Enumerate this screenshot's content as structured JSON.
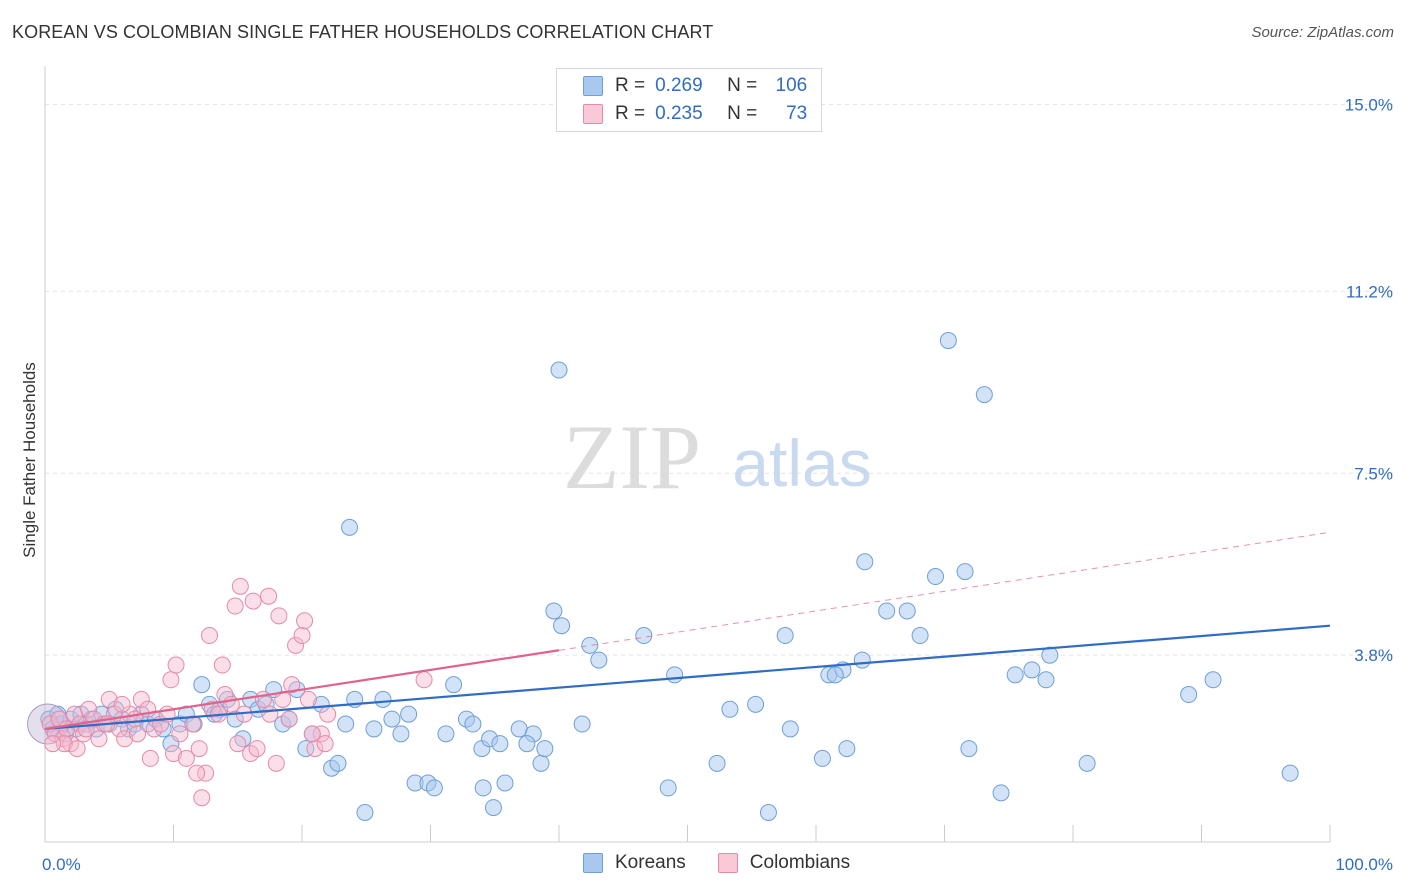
{
  "header": {
    "title": "KOREAN VS COLOMBIAN SINGLE FATHER HOUSEHOLDS CORRELATION CHART",
    "source": "Source: ZipAtlas.com"
  },
  "watermark": {
    "zip": "ZIP",
    "atlas": "atlas"
  },
  "legend": {
    "r_label": "R =",
    "n_label": "N =",
    "series": [
      {
        "r": "0.269",
        "n": "106"
      },
      {
        "r": "0.235",
        "n": "73"
      }
    ]
  },
  "chart_data": {
    "type": "scatter",
    "title": "KOREAN VS COLOMBIAN SINGLE FATHER HOUSEHOLDS CORRELATION CHART",
    "xlabel": "",
    "ylabel": "Single Father Households",
    "xlim": [
      0,
      100
    ],
    "ylim": [
      0,
      15.5
    ],
    "x_tick_labels": [
      "0.0%",
      "100.0%"
    ],
    "y_ticks": [
      {
        "value": 3.8,
        "label": "3.8%"
      },
      {
        "value": 7.5,
        "label": "7.5%"
      },
      {
        "value": 11.2,
        "label": "11.2%"
      },
      {
        "value": 15.0,
        "label": "15.0%"
      }
    ],
    "colors": {
      "koreans_fill": "#a8c8f0",
      "koreans_stroke": "#6e9fd8",
      "koreans_line": "#2f6cc6",
      "colombians_fill": "#f6b8cc",
      "colombians_stroke": "#e58aa8",
      "colombians_line": "#e0638c",
      "axis_label": "#2f6cc6",
      "grid": "#e3e3e3"
    },
    "series": [
      {
        "name": "Koreans",
        "trend": {
          "x": [
            0,
            100
          ],
          "y": [
            2.3,
            4.4
          ]
        },
        "points": [
          [
            0.3,
            2.5
          ],
          [
            0.6,
            2.3
          ],
          [
            1.0,
            2.6
          ],
          [
            1.3,
            2.4
          ],
          [
            1.6,
            2.2
          ],
          [
            2.0,
            2.5
          ],
          [
            2.4,
            2.3
          ],
          [
            2.8,
            2.6
          ],
          [
            3.2,
            2.4
          ],
          [
            3.6,
            2.5
          ],
          [
            4.0,
            2.3
          ],
          [
            4.4,
            2.6
          ],
          [
            5.0,
            2.4
          ],
          [
            5.5,
            2.7
          ],
          [
            6.0,
            2.5
          ],
          [
            6.5,
            2.3
          ],
          [
            7.0,
            2.4
          ],
          [
            7.5,
            2.6
          ],
          [
            8.0,
            2.4
          ],
          [
            8.6,
            2.5
          ],
          [
            9.2,
            2.3
          ],
          [
            9.8,
            2.0
          ],
          [
            10.5,
            2.4
          ],
          [
            11.0,
            2.6
          ],
          [
            11.6,
            2.4
          ],
          [
            12.2,
            3.2
          ],
          [
            12.8,
            2.8
          ],
          [
            13.2,
            2.6
          ],
          [
            13.6,
            2.7
          ],
          [
            14.2,
            2.9
          ],
          [
            14.8,
            2.5
          ],
          [
            15.4,
            2.1
          ],
          [
            16.0,
            2.9
          ],
          [
            16.6,
            2.7
          ],
          [
            17.2,
            2.8
          ],
          [
            17.8,
            3.1
          ],
          [
            18.5,
            2.4
          ],
          [
            19.0,
            2.5
          ],
          [
            19.6,
            3.1
          ],
          [
            20.3,
            1.9
          ],
          [
            20.8,
            2.2
          ],
          [
            21.5,
            2.8
          ],
          [
            22.3,
            1.5
          ],
          [
            22.8,
            1.6
          ],
          [
            23.4,
            2.4
          ],
          [
            24.1,
            2.9
          ],
          [
            24.9,
            0.6
          ],
          [
            25.6,
            2.3
          ],
          [
            26.3,
            2.9
          ],
          [
            27.0,
            2.5
          ],
          [
            27.7,
            2.2
          ],
          [
            28.3,
            2.6
          ],
          [
            28.8,
            1.2
          ],
          [
            29.8,
            1.2
          ],
          [
            30.3,
            1.1
          ],
          [
            31.2,
            2.2
          ],
          [
            31.8,
            3.2
          ],
          [
            32.8,
            2.5
          ],
          [
            33.3,
            2.4
          ],
          [
            34.0,
            1.9
          ],
          [
            34.6,
            2.1
          ],
          [
            34.9,
            0.7
          ],
          [
            35.4,
            2.0
          ],
          [
            35.8,
            1.2
          ],
          [
            36.9,
            2.3
          ],
          [
            38.0,
            2.2
          ],
          [
            38.6,
            1.6
          ],
          [
            38.9,
            1.9
          ],
          [
            39.6,
            4.7
          ],
          [
            40.2,
            4.4
          ],
          [
            34.1,
            1.1
          ],
          [
            37.5,
            2.0
          ],
          [
            41.8,
            2.4
          ],
          [
            42.4,
            4.0
          ],
          [
            43.1,
            3.7
          ],
          [
            46.6,
            4.2
          ],
          [
            49.0,
            3.4
          ],
          [
            53.3,
            2.7
          ],
          [
            55.3,
            2.8
          ],
          [
            56.3,
            0.6
          ],
          [
            57.6,
            4.2
          ],
          [
            60.5,
            1.7
          ],
          [
            61.0,
            3.4
          ],
          [
            62.1,
            3.5
          ],
          [
            62.4,
            1.9
          ],
          [
            63.8,
            5.7
          ],
          [
            63.6,
            3.7
          ],
          [
            65.5,
            4.7
          ],
          [
            67.1,
            4.7
          ],
          [
            68.1,
            4.2
          ],
          [
            69.3,
            5.4
          ],
          [
            70.3,
            10.2
          ],
          [
            71.6,
            5.5
          ],
          [
            71.9,
            1.9
          ],
          [
            73.1,
            9.1
          ],
          [
            74.4,
            1.0
          ],
          [
            75.5,
            3.4
          ],
          [
            76.8,
            3.5
          ],
          [
            77.9,
            3.3
          ],
          [
            78.2,
            3.8
          ],
          [
            81.1,
            1.6
          ],
          [
            89.0,
            3.0
          ],
          [
            90.9,
            3.3
          ],
          [
            96.9,
            1.4
          ],
          [
            48.5,
            1.1
          ],
          [
            52.3,
            1.6
          ],
          [
            23.7,
            6.4
          ],
          [
            40.0,
            9.6
          ],
          [
            61.5,
            3.4
          ],
          [
            58.0,
            2.3
          ]
        ]
      },
      {
        "name": "Colombians",
        "trend": {
          "x": [
            0,
            40
          ],
          "y": [
            2.3,
            3.9
          ]
        },
        "trend_dashed": {
          "x": [
            40,
            100
          ],
          "y": [
            3.9,
            6.3
          ]
        },
        "points": [
          [
            0.4,
            2.4
          ],
          [
            0.8,
            2.2
          ],
          [
            1.1,
            2.5
          ],
          [
            1.4,
            2.1
          ],
          [
            1.7,
            2.3
          ],
          [
            2.0,
            2.0
          ],
          [
            2.3,
            2.6
          ],
          [
            2.7,
            2.4
          ],
          [
            3.0,
            2.2
          ],
          [
            3.4,
            2.7
          ],
          [
            3.8,
            2.5
          ],
          [
            4.2,
            2.1
          ],
          [
            4.6,
            2.4
          ],
          [
            5.0,
            2.9
          ],
          [
            5.4,
            2.6
          ],
          [
            5.8,
            2.3
          ],
          [
            6.2,
            2.1
          ],
          [
            6.6,
            2.6
          ],
          [
            7.0,
            2.5
          ],
          [
            7.5,
            2.9
          ],
          [
            8.0,
            2.7
          ],
          [
            8.5,
            2.3
          ],
          [
            9.0,
            2.4
          ],
          [
            9.5,
            2.6
          ],
          [
            10.0,
            1.8
          ],
          [
            10.5,
            2.2
          ],
          [
            11.0,
            1.7
          ],
          [
            11.5,
            2.4
          ],
          [
            12.0,
            1.9
          ],
          [
            12.5,
            1.4
          ],
          [
            13.0,
            2.7
          ],
          [
            13.5,
            2.6
          ],
          [
            14.0,
            3.0
          ],
          [
            14.5,
            2.8
          ],
          [
            15.0,
            2.0
          ],
          [
            15.5,
            2.6
          ],
          [
            16.0,
            1.8
          ],
          [
            16.5,
            1.9
          ],
          [
            17.0,
            2.9
          ],
          [
            17.5,
            2.6
          ],
          [
            18.0,
            1.6
          ],
          [
            18.5,
            2.9
          ],
          [
            19.0,
            2.5
          ],
          [
            19.5,
            4.0
          ],
          [
            20.0,
            4.2
          ],
          [
            20.5,
            2.9
          ],
          [
            21.0,
            1.9
          ],
          [
            21.5,
            2.2
          ],
          [
            22.0,
            2.6
          ],
          [
            1.5,
            2.0
          ],
          [
            2.5,
            1.9
          ],
          [
            3.2,
            2.3
          ],
          [
            4.8,
            2.4
          ],
          [
            6.0,
            2.8
          ],
          [
            7.2,
            2.2
          ],
          [
            8.2,
            1.7
          ],
          [
            9.8,
            3.3
          ],
          [
            10.2,
            3.6
          ],
          [
            11.8,
            1.4
          ],
          [
            12.8,
            4.2
          ],
          [
            13.8,
            3.6
          ],
          [
            14.8,
            4.8
          ],
          [
            15.2,
            5.2
          ],
          [
            16.2,
            4.9
          ],
          [
            17.4,
            5.0
          ],
          [
            18.2,
            4.6
          ],
          [
            19.2,
            3.2
          ],
          [
            20.2,
            4.5
          ],
          [
            20.8,
            2.2
          ],
          [
            21.8,
            2.0
          ],
          [
            29.5,
            3.3
          ],
          [
            12.2,
            0.9
          ],
          [
            0.6,
            2.0
          ]
        ]
      }
    ],
    "big_circle": {
      "series": "Koreans",
      "x": 0.2,
      "y": 2.4
    }
  },
  "bottom_legend": {
    "items": [
      "Koreans",
      "Colombians"
    ]
  }
}
